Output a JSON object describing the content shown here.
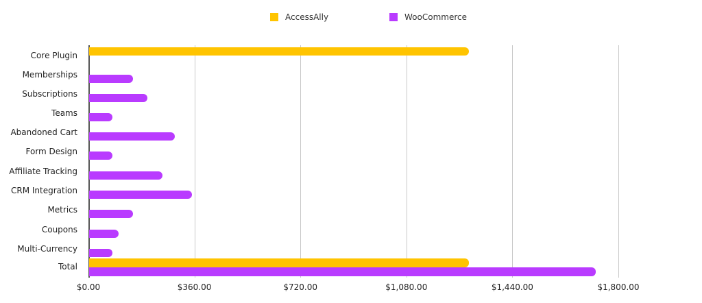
{
  "chart_data": {
    "type": "bar",
    "orientation": "horizontal",
    "title": "",
    "xlabel": "",
    "ylabel": "",
    "xlim": [
      0,
      1800
    ],
    "grid": true,
    "legend_position": "top",
    "x_tick_labels": [
      "$0.00",
      "$360.00",
      "$720.00",
      "$1,080.00",
      "$1,440.00",
      "$1,800.00"
    ],
    "x_ticks": [
      0,
      360,
      720,
      1080,
      1440,
      1800
    ],
    "categories": [
      "Core Plugin",
      "Memberships",
      "Subscriptions",
      "Teams",
      "Abandoned Cart",
      "Form Design",
      "Affiliate Tracking",
      "CRM Integration",
      "Metrics",
      "Coupons",
      "Multi-Currency",
      "Total"
    ],
    "series": [
      {
        "name": "AccessAlly",
        "color": "#FFC400",
        "values": [
          1290,
          null,
          null,
          null,
          null,
          null,
          null,
          null,
          null,
          null,
          null,
          1290
        ]
      },
      {
        "name": "WooCommerce",
        "color": "#B93BFF",
        "values": [
          null,
          149,
          199,
          79,
          290,
          79,
          249,
          349,
          149,
          99,
          79,
          1720
        ]
      }
    ]
  },
  "legend": [
    {
      "label": "AccessAlly",
      "color": "#FFC400"
    },
    {
      "label": "WooCommerce",
      "color": "#B93BFF"
    }
  ]
}
